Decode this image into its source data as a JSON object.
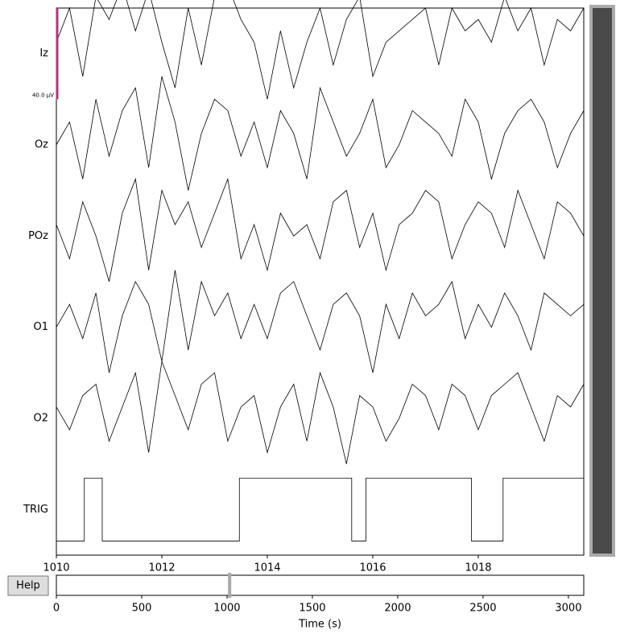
{
  "chart_data": [
    {
      "type": "line",
      "scalebar": {
        "value": 40,
        "label": "40.0 µV",
        "color": "#b0347a"
      },
      "xlim": [
        1010,
        1020
      ],
      "xticks": [
        1010,
        1012,
        1014,
        1016,
        1018
      ],
      "x": [
        1010,
        1010.25,
        1010.5,
        1010.75,
        1011,
        1011.25,
        1011.5,
        1011.75,
        1012,
        1012.25,
        1012.5,
        1012.75,
        1013,
        1013.25,
        1013.5,
        1013.75,
        1014,
        1014.25,
        1014.5,
        1014.75,
        1015,
        1015.25,
        1015.5,
        1015.75,
        1016,
        1016.25,
        1016.5,
        1016.75,
        1017,
        1017.25,
        1017.5,
        1017.75,
        1018,
        1018.25,
        1018.5,
        1018.75,
        1019,
        1019.25,
        1019.5,
        1019.75,
        1020
      ],
      "series": [
        {
          "name": "Iz",
          "color": "#000000",
          "values": [
            5,
            20,
            -10,
            25,
            15,
            30,
            10,
            28,
            5,
            -15,
            20,
            -5,
            25,
            30,
            15,
            5,
            -20,
            10,
            -15,
            5,
            20,
            -5,
            15,
            25,
            -10,
            5,
            10,
            15,
            20,
            -5,
            20,
            10,
            15,
            5,
            25,
            10,
            20,
            -5,
            15,
            10,
            20
          ]
        },
        {
          "name": "Oz",
          "color": "#000000",
          "values": [
            0,
            10,
            -15,
            20,
            -5,
            15,
            25,
            -10,
            30,
            10,
            -20,
            5,
            20,
            15,
            -5,
            10,
            -10,
            15,
            5,
            -15,
            25,
            10,
            -5,
            5,
            20,
            -10,
            0,
            15,
            10,
            5,
            -5,
            20,
            10,
            -15,
            5,
            15,
            20,
            10,
            -10,
            5,
            15
          ]
        },
        {
          "name": "POz",
          "color": "#000000",
          "values": [
            5,
            -10,
            15,
            0,
            -20,
            10,
            25,
            -15,
            20,
            5,
            15,
            -5,
            10,
            25,
            -10,
            5,
            -15,
            10,
            0,
            5,
            -10,
            15,
            20,
            -5,
            10,
            -15,
            5,
            10,
            20,
            15,
            -10,
            5,
            15,
            10,
            -5,
            20,
            5,
            -10,
            15,
            10,
            0
          ]
        },
        {
          "name": "O1",
          "color": "#000000",
          "values": [
            0,
            10,
            -5,
            15,
            -20,
            5,
            20,
            10,
            -15,
            25,
            -10,
            20,
            5,
            15,
            -5,
            10,
            -5,
            15,
            20,
            5,
            -10,
            10,
            15,
            5,
            -20,
            10,
            -5,
            15,
            5,
            10,
            20,
            -5,
            10,
            0,
            15,
            5,
            -10,
            15,
            10,
            5,
            10
          ]
        },
        {
          "name": "O2",
          "color": "#000000",
          "values": [
            5,
            -5,
            10,
            15,
            -10,
            5,
            20,
            -15,
            25,
            10,
            -5,
            15,
            20,
            -10,
            5,
            10,
            -15,
            5,
            15,
            -10,
            20,
            5,
            -20,
            10,
            5,
            -10,
            0,
            15,
            10,
            -5,
            15,
            10,
            -5,
            10,
            15,
            20,
            5,
            -10,
            10,
            5,
            15
          ]
        },
        {
          "name": "TRIG",
          "color": "#000000",
          "step": true,
          "x": [
            1010,
            1010.53,
            1010.53,
            1010.87,
            1010.87,
            1013.47,
            1013.47,
            1015.6,
            1015.6,
            1015.87,
            1015.87,
            1017.87,
            1017.87,
            1018.47,
            1018.47,
            1020
          ],
          "values": [
            0,
            0,
            1,
            1,
            0,
            0,
            1,
            1,
            0,
            0,
            1,
            1,
            0,
            0,
            1,
            1
          ]
        }
      ]
    },
    {
      "type": "overview",
      "xlabel": "Time (s)",
      "xlim": [
        0,
        3090
      ],
      "xticks": [
        0,
        500,
        1000,
        1500,
        2000,
        2500,
        3000
      ],
      "window": [
        1010,
        1020
      ],
      "color": "#aaaaaa"
    }
  ],
  "help_button": "Help"
}
